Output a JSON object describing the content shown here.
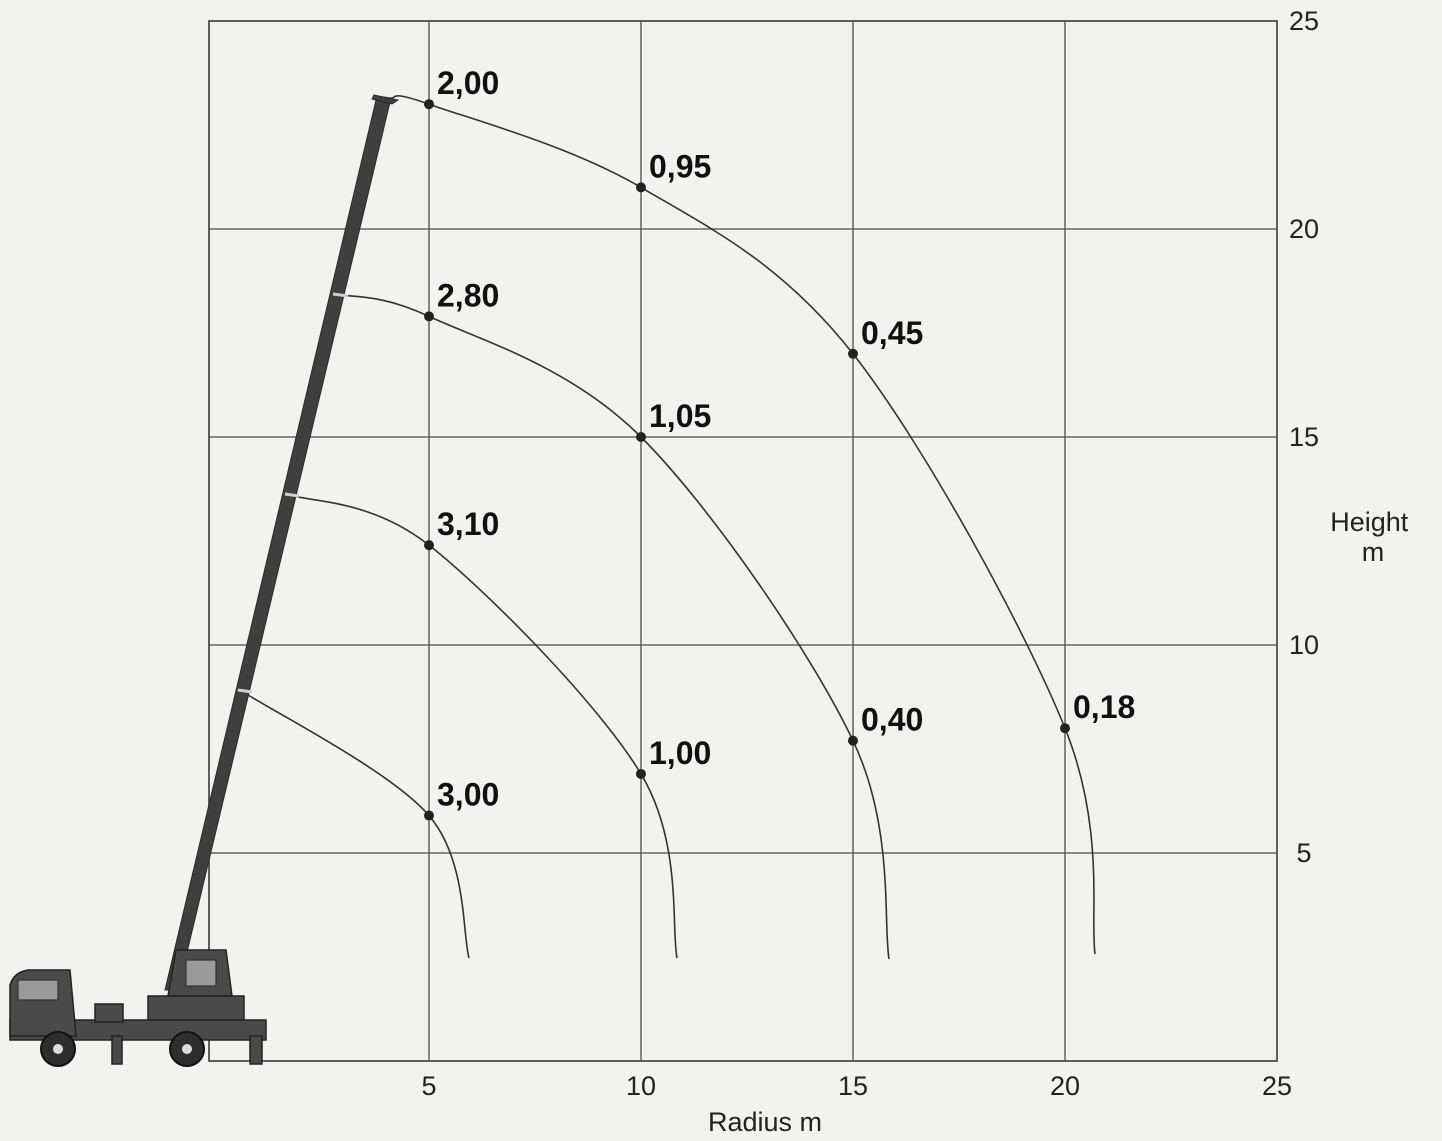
{
  "chart_data": {
    "type": "line",
    "xlabel": "Radius m",
    "ylabel": "Height\nm",
    "xlim": [
      0,
      25
    ],
    "ylim": [
      0,
      25
    ],
    "x_ticks": [
      "5",
      "10",
      "15",
      "20",
      "25"
    ],
    "y_ticks": [
      "5",
      "10",
      "15",
      "20",
      "25"
    ],
    "grid": true,
    "series": [
      {
        "points": [
          {
            "x": 5.0,
            "y": 23.0,
            "label": "2,00"
          },
          {
            "x": 10.0,
            "y": 21.0,
            "label": "0,95"
          },
          {
            "x": 15.0,
            "y": 17.0,
            "label": "0,45"
          },
          {
            "x": 20.0,
            "y": 8.0,
            "label": "0,18"
          }
        ]
      },
      {
        "points": [
          {
            "x": 5.0,
            "y": 17.9,
            "label": "2,80"
          },
          {
            "x": 10.0,
            "y": 15.0,
            "label": "1,05"
          },
          {
            "x": 15.0,
            "y": 7.7,
            "label": "0,40"
          }
        ]
      },
      {
        "points": [
          {
            "x": 5.0,
            "y": 12.4,
            "label": "3,10"
          },
          {
            "x": 10.0,
            "y": 6.9,
            "label": "1,00"
          }
        ]
      },
      {
        "points": [
          {
            "x": 5.0,
            "y": 5.9,
            "label": "3,00"
          }
        ]
      }
    ]
  }
}
